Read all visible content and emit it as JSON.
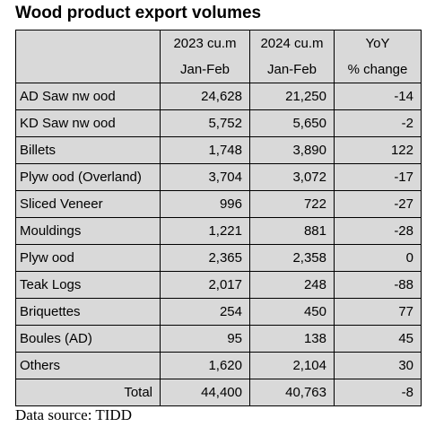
{
  "title": "Wood product export volumes",
  "columns": {
    "c2023_line1": "2023 cu.m",
    "c2023_line2": "Jan-Feb",
    "c2024_line1": "2024 cu.m",
    "c2024_line2": "Jan-Feb",
    "yoy_line1": "YoY",
    "yoy_line2": "% change"
  },
  "rows": [
    {
      "product": "AD Saw nw ood",
      "v2023": "24,628",
      "v2024": "21,250",
      "yoy": "-14"
    },
    {
      "product": "KD Saw nw ood",
      "v2023": "5,752",
      "v2024": "5,650",
      "yoy": "-2"
    },
    {
      "product": "Billets",
      "v2023": "1,748",
      "v2024": "3,890",
      "yoy": "122"
    },
    {
      "product": "Plyw ood (Overland)",
      "v2023": "3,704",
      "v2024": "3,072",
      "yoy": "-17"
    },
    {
      "product": "Sliced Veneer",
      "v2023": "996",
      "v2024": "722",
      "yoy": "-27"
    },
    {
      "product": "Mouldings",
      "v2023": "1,221",
      "v2024": "881",
      "yoy": "-28"
    },
    {
      "product": "Plyw ood",
      "v2023": "2,365",
      "v2024": "2,358",
      "yoy": "0"
    },
    {
      "product": "Teak Logs",
      "v2023": "2,017",
      "v2024": "248",
      "yoy": "-88"
    },
    {
      "product": "Briquettes",
      "v2023": "254",
      "v2024": "450",
      "yoy": "77"
    },
    {
      "product": "Boules (AD)",
      "v2023": "95",
      "v2024": "138",
      "yoy": "45"
    },
    {
      "product": "Others",
      "v2023": "1,620",
      "v2024": "2,104",
      "yoy": "30"
    }
  ],
  "total": {
    "label": "Total",
    "v2023": "44,400",
    "v2024": "40,763",
    "yoy": "-8"
  },
  "source": "Data source: TIDD"
}
